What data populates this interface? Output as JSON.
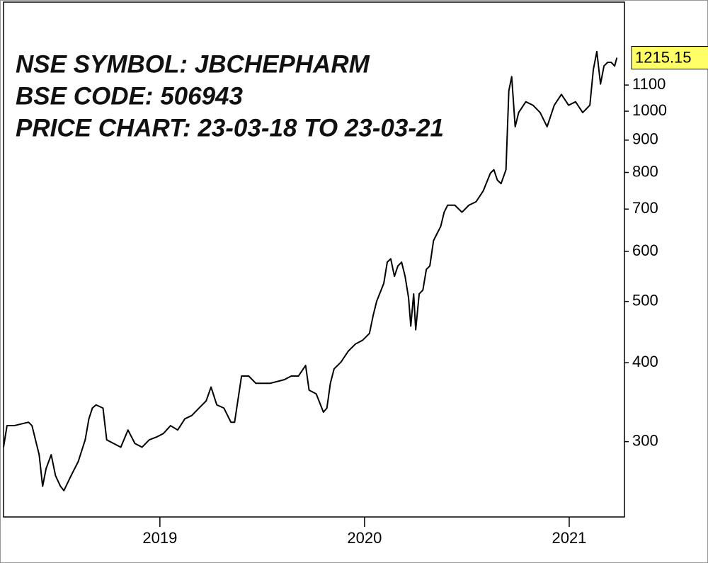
{
  "chart_data": {
    "type": "line",
    "annotations": [
      "NSE SYMBOL: JBCHEPHARM",
      "BSE CODE: 506943",
      "PRICE CHART: 23-03-18 TO 23-03-21"
    ],
    "log_scale": true,
    "color": "#000000",
    "last_price": 1215.15,
    "last_price_color": "#ffff66",
    "xlim": [
      2018.236,
      2021.27
    ],
    "xticks": [
      2019,
      2020,
      2021
    ],
    "ylim": [
      228,
      1488
    ],
    "yticks": [
      300,
      400,
      500,
      600,
      700,
      800,
      900,
      1000,
      1100
    ],
    "x": [
      2018.236,
      2018.253,
      2018.288,
      2018.358,
      2018.375,
      2018.41,
      2018.427,
      2018.444,
      2018.469,
      2018.49,
      2018.514,
      2018.531,
      2018.566,
      2018.601,
      2018.635,
      2018.653,
      2018.67,
      2018.688,
      2018.722,
      2018.74,
      2018.774,
      2018.809,
      2018.844,
      2018.878,
      2018.913,
      2018.948,
      2018.983,
      2019.017,
      2019.052,
      2019.087,
      2019.122,
      2019.156,
      2019.191,
      2019.226,
      2019.25,
      2019.278,
      2019.313,
      2019.347,
      2019.365,
      2019.399,
      2019.434,
      2019.469,
      2019.538,
      2019.608,
      2019.642,
      2019.677,
      2019.712,
      2019.729,
      2019.764,
      2019.799,
      2019.816,
      2019.833,
      2019.851,
      2019.885,
      2019.92,
      2019.955,
      2019.99,
      2020.024,
      2020.042,
      2020.059,
      2020.094,
      2020.111,
      2020.128,
      2020.146,
      2020.163,
      2020.181,
      2020.198,
      2020.215,
      2020.226,
      2020.24,
      2020.25,
      2020.267,
      2020.285,
      2020.302,
      2020.319,
      2020.337,
      2020.354,
      2020.372,
      2020.389,
      2020.406,
      2020.441,
      2020.476,
      2020.51,
      2020.545,
      2020.58,
      2020.615,
      2020.632,
      2020.649,
      2020.667,
      2020.691,
      2020.705,
      2020.719,
      2020.736,
      2020.753,
      2020.788,
      2020.823,
      2020.858,
      2020.892,
      2020.927,
      2020.962,
      2020.997,
      2021.031,
      2021.066,
      2021.101,
      2021.118,
      2021.135,
      2021.153,
      2021.17,
      2021.188,
      2021.205,
      2021.222,
      2021.233
    ],
    "values": [
      294,
      318,
      318,
      322,
      318,
      286,
      255,
      272,
      286,
      265,
      255,
      251,
      265,
      279,
      302,
      326,
      339,
      343,
      339,
      302,
      298,
      294,
      313,
      298,
      294,
      302,
      305,
      309,
      318,
      313,
      326,
      330,
      339,
      348,
      366,
      343,
      339,
      322,
      322,
      381,
      381,
      371,
      371,
      376,
      381,
      381,
      396,
      362,
      357,
      334,
      339,
      371,
      391,
      401,
      417,
      428,
      434,
      445,
      475,
      500,
      534,
      577,
      584,
      548,
      569,
      577,
      548,
      507,
      457,
      514,
      451,
      514,
      521,
      562,
      569,
      624,
      640,
      657,
      692,
      710,
      710,
      692,
      710,
      719,
      748,
      798,
      808,
      778,
      768,
      808,
      1077,
      1134,
      945,
      995,
      1035,
      1022,
      995,
      945,
      1022,
      1063,
      1022,
      1035,
      995,
      1022,
      1164,
      1243,
      1104,
      1179,
      1195,
      1195,
      1179,
      1215
    ]
  }
}
